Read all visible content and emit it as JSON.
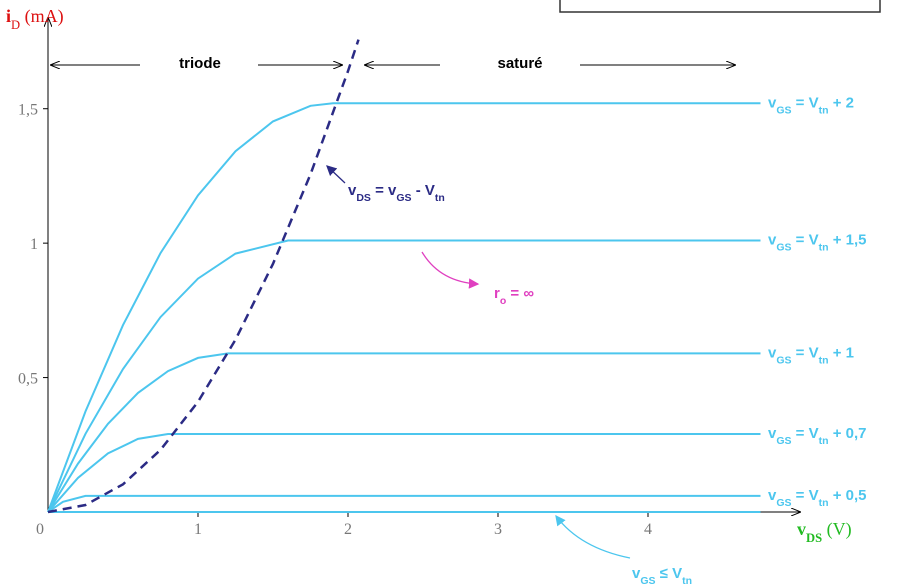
{
  "chart_data": {
    "type": "line",
    "x_title": [
      "v",
      "DS",
      " (V)"
    ],
    "y_title": [
      "i",
      "D",
      " (mA)"
    ],
    "xlim": [
      0,
      5.01
    ],
    "ylim": [
      0,
      1.83
    ],
    "xticks": [
      0,
      1,
      2,
      3,
      4
    ],
    "yticks": [
      {
        "value": 0.5,
        "label": "0,5"
      },
      1,
      {
        "value": 1.5,
        "label": "1,5"
      }
    ],
    "series": [
      {
        "name": [
          "v",
          "GS",
          " = V",
          "tn",
          " + 2"
        ],
        "color": "#4cc6ee",
        "x": [
          0,
          0.25,
          0.5,
          0.75,
          1,
          1.25,
          1.5,
          1.75,
          1.9,
          4.75
        ],
        "values": [
          0,
          0.374,
          0.695,
          0.963,
          1.178,
          1.342,
          1.453,
          1.511,
          1.52,
          1.52
        ]
      },
      {
        "name": [
          "v",
          "GS",
          " = V",
          "tn",
          " + 1,5"
        ],
        "color": "#4cc6ee",
        "x": [
          0,
          0.25,
          0.5,
          0.75,
          1,
          1.25,
          1.6,
          4.75
        ],
        "values": [
          0,
          0.291,
          0.532,
          0.725,
          0.868,
          0.961,
          1.01,
          1.01
        ]
      },
      {
        "name": [
          "v",
          "GS",
          " = V",
          "tn",
          " + 1"
        ],
        "color": "#4cc6ee",
        "x": [
          0,
          0.2,
          0.4,
          0.6,
          0.8,
          1.0,
          1.2,
          4.75
        ],
        "values": [
          0,
          0.18,
          0.328,
          0.443,
          0.524,
          0.573,
          0.59,
          0.59
        ]
      },
      {
        "name": [
          "v",
          "GS",
          " = V",
          "tn",
          " + 0,7"
        ],
        "color": "#4cc6ee",
        "x": [
          0,
          0.2,
          0.4,
          0.6,
          0.8,
          4.75
        ],
        "values": [
          0,
          0.127,
          0.218,
          0.272,
          0.29,
          0.29
        ]
      },
      {
        "name": [
          "v",
          "GS",
          " = V",
          "tn",
          " + 0,5"
        ],
        "color": "#4cc6ee",
        "x": [
          0,
          0.1,
          0.25,
          4.75
        ],
        "values": [
          0,
          0.038,
          0.06,
          0.06
        ]
      },
      {
        "name": [
          "v",
          "GS",
          " ≤ V",
          "tn"
        ],
        "color": "#4cc6ee",
        "x": [
          0,
          4.75
        ],
        "values": [
          0,
          0
        ]
      },
      {
        "name": [
          "v",
          "DS",
          " = v",
          "GS",
          " - V",
          "tn"
        ],
        "color": "#2b2b85",
        "dashed": true,
        "x": [
          0,
          0.25,
          0.5,
          0.75,
          1,
          1.25,
          1.5,
          1.75,
          2,
          2.07
        ],
        "values": [
          0,
          0.026,
          0.103,
          0.231,
          0.41,
          0.641,
          0.923,
          1.256,
          1.64,
          1.757
        ]
      }
    ],
    "regions": [
      "triode",
      "saturé"
    ],
    "annotation": [
      "r",
      "o",
      " = ∞"
    ]
  }
}
